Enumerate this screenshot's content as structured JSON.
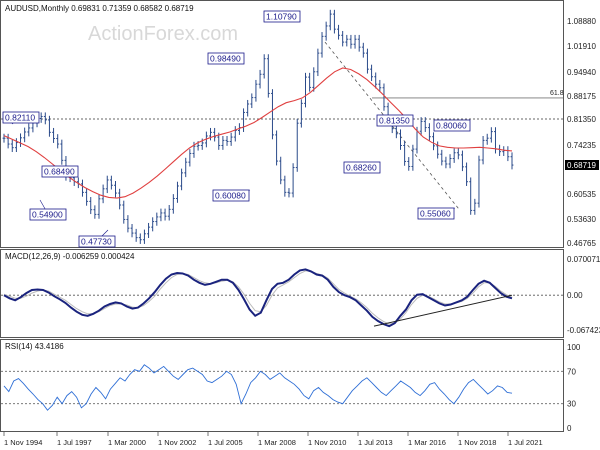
{
  "header": {
    "symbol_line": "AUDUSD,Monthly  0.69831 0.71359 0.68582 0.68719"
  },
  "watermark": "ActionForex.com",
  "colors": {
    "price": "#2a4a8a",
    "sma": "#e04040",
    "macd": "#1a237e",
    "signal": "#bbbbbb",
    "rsi": "#2f6fd6",
    "grid": "#cfcfcf",
    "annotation_bg": "#ffffff",
    "annotation_border": "#1a1a8a"
  },
  "chart_data": [
    {
      "type": "line",
      "title": "AUDUSD,Monthly  0.69831 0.71359 0.68582 0.68719",
      "x_ticks": [
        "1 Nov 1994",
        "1 Jul 1997",
        "1 Mar 2000",
        "1 Nov 2002",
        "1 Jul 2005",
        "1 Mar 2008",
        "1 Nov 2010",
        "1 Jul 2013",
        "1 Mar 2016",
        "1 Nov 2018",
        "1 Jul 2021"
      ],
      "y_ticks": [
        "1.08880",
        "1.01910",
        "0.94940",
        "0.88175",
        "0.81350",
        "0.74235",
        "0.68719",
        "0.60535",
        "0.53630",
        "0.46765"
      ],
      "ylim": [
        0.46765,
        1.0888
      ],
      "current_price": "0.68719",
      "fib_label": "61.8",
      "series": [
        {
          "values": [
            0.761,
            0.745,
            0.735,
            0.749,
            0.762,
            0.778,
            0.789,
            0.803,
            0.815,
            0.821,
            0.811,
            0.777,
            0.76,
            0.745,
            0.7,
            0.655,
            0.651,
            0.64,
            0.634,
            0.61,
            0.585,
            0.562,
            0.549,
            0.592,
            0.62,
            0.645,
            0.63,
            0.608,
            0.575,
            0.535,
            0.51,
            0.496,
            0.483,
            0.477,
            0.494,
            0.513,
            0.529,
            0.542,
            0.553,
            0.544,
            0.563,
            0.593,
            0.628,
            0.665,
            0.695,
            0.719,
            0.739,
            0.741,
            0.748,
            0.767,
            0.777,
            0.764,
            0.741,
            0.755,
            0.752,
            0.764,
            0.782,
            0.79,
            0.833,
            0.858,
            0.877,
            0.915,
            0.943,
            0.985,
            0.889,
            0.77,
            0.698,
            0.645,
            0.61,
            0.608,
            0.68,
            0.802,
            0.86,
            0.935,
            0.906,
            0.95,
            1.0,
            1.046,
            1.075,
            1.108,
            1.066,
            1.049,
            1.03,
            1.038,
            1.024,
            1.038,
            1.016,
            1.0,
            0.957,
            0.936,
            0.915,
            0.905,
            0.85,
            0.813,
            0.787,
            0.773,
            0.741,
            0.697,
            0.683,
            0.731,
            0.78,
            0.807,
            0.79,
            0.765,
            0.74,
            0.717,
            0.698,
            0.69,
            0.705,
            0.721,
            0.715,
            0.682,
            0.64,
            0.56,
            0.58,
            0.701,
            0.755,
            0.761,
            0.779,
            0.731,
            0.724,
            0.727,
            0.71,
            0.687
          ],
          "annotations": [
            "0.82110",
            "0.54900",
            "0.47730",
            "0.68490",
            "0.98490",
            "0.60080",
            "1.10790",
            "0.68260",
            "0.81350",
            "0.80060",
            "0.55060"
          ]
        },
        {
          "name": "",
          "values": [
            0.768,
            0.758,
            0.748,
            0.738,
            0.724,
            0.708,
            0.69,
            0.672,
            0.654,
            0.638,
            0.624,
            0.612,
            0.602,
            0.596,
            0.594,
            0.598,
            0.608,
            0.622,
            0.638,
            0.656,
            0.676,
            0.696,
            0.716,
            0.734,
            0.748,
            0.758,
            0.766,
            0.772,
            0.778,
            0.786,
            0.794,
            0.804,
            0.818,
            0.834,
            0.85,
            0.862,
            0.868,
            0.876,
            0.892,
            0.912,
            0.932,
            0.95,
            0.96,
            0.956,
            0.944,
            0.928,
            0.908,
            0.886,
            0.862,
            0.838,
            0.812,
            0.786,
            0.764,
            0.75,
            0.74,
            0.736,
            0.734,
            0.734,
            0.735,
            0.736,
            0.734,
            0.732,
            0.728,
            0.726
          ]
        }
      ]
    },
    {
      "type": "line",
      "title": "MACD(12,26,9) -0.006259 0.000424",
      "y_ticks": [
        "0.070071",
        "0.00",
        "-0.067423"
      ],
      "ylim": [
        -0.067423,
        0.070071
      ],
      "series": [
        {
          "name": "MACD",
          "values": [
            0.0,
            -0.006,
            -0.01,
            -0.004,
            0.004,
            0.01,
            0.011,
            0.01,
            0.005,
            -0.002,
            -0.008,
            -0.015,
            -0.024,
            -0.032,
            -0.038,
            -0.04,
            -0.036,
            -0.03,
            -0.022,
            -0.017,
            -0.014,
            -0.016,
            -0.022,
            -0.026,
            -0.024,
            -0.016,
            -0.006,
            0.006,
            0.02,
            0.032,
            0.04,
            0.043,
            0.042,
            0.038,
            0.03,
            0.024,
            0.02,
            0.022,
            0.026,
            0.03,
            0.03,
            0.024,
            0.01,
            -0.008,
            -0.028,
            -0.04,
            -0.034,
            -0.01,
            0.012,
            0.022,
            0.024,
            0.03,
            0.04,
            0.048,
            0.05,
            0.046,
            0.04,
            0.038,
            0.03,
            0.016,
            0.006,
            0.0,
            -0.004,
            -0.01,
            -0.02,
            -0.03,
            -0.042,
            -0.05,
            -0.056,
            -0.06,
            -0.054,
            -0.04,
            -0.028,
            -0.01,
            0.001,
            0.002,
            -0.004,
            -0.01,
            -0.016,
            -0.02,
            -0.018,
            -0.014,
            -0.01,
            -0.003,
            0.01,
            0.022,
            0.028,
            0.024,
            0.014,
            0.004,
            -0.003,
            -0.006
          ]
        },
        {
          "name": "Signal",
          "values": [
            0.002,
            -0.002,
            -0.006,
            -0.006,
            -0.002,
            0.004,
            0.008,
            0.01,
            0.008,
            0.002,
            -0.004,
            -0.01,
            -0.018,
            -0.026,
            -0.032,
            -0.036,
            -0.036,
            -0.032,
            -0.026,
            -0.02,
            -0.017,
            -0.017,
            -0.019,
            -0.023,
            -0.024,
            -0.02,
            -0.012,
            -0.002,
            0.012,
            0.024,
            0.034,
            0.04,
            0.042,
            0.04,
            0.034,
            0.028,
            0.024,
            0.022,
            0.024,
            0.027,
            0.029,
            0.026,
            0.016,
            0.002,
            -0.016,
            -0.03,
            -0.032,
            -0.02,
            0.0,
            0.014,
            0.02,
            0.026,
            0.034,
            0.042,
            0.047,
            0.046,
            0.042,
            0.039,
            0.033,
            0.022,
            0.011,
            0.004,
            -0.002,
            -0.007,
            -0.015,
            -0.024,
            -0.035,
            -0.044,
            -0.051,
            -0.056,
            -0.054,
            -0.046,
            -0.034,
            -0.018,
            -0.006,
            0.0,
            -0.002,
            -0.007,
            -0.013,
            -0.017,
            -0.017,
            -0.015,
            -0.012,
            -0.006,
            0.004,
            0.016,
            0.024,
            0.024,
            0.017,
            0.008,
            0.001,
            -0.004
          ]
        }
      ]
    },
    {
      "type": "line",
      "title": "RSI(14) 43.4186",
      "y_ticks": [
        "100",
        "70",
        "30",
        "0"
      ],
      "ylim": [
        0,
        100
      ],
      "series": [
        {
          "name": "RSI",
          "values": [
            52,
            45,
            58,
            61,
            55,
            48,
            42,
            35,
            30,
            22,
            28,
            38,
            30,
            40,
            45,
            38,
            25,
            30,
            42,
            50,
            44,
            36,
            48,
            55,
            62,
            58,
            66,
            72,
            70,
            78,
            74,
            68,
            72,
            76,
            70,
            64,
            60,
            66,
            72,
            74,
            70,
            66,
            58,
            56,
            60,
            64,
            70,
            66,
            54,
            30,
            42,
            56,
            62,
            70,
            66,
            60,
            64,
            68,
            62,
            58,
            54,
            48,
            40,
            36,
            46,
            50,
            44,
            40,
            35,
            32,
            30,
            38,
            46,
            52,
            58,
            62,
            56,
            50,
            44,
            40,
            46,
            52,
            58,
            54,
            50,
            44,
            40,
            46,
            54,
            56,
            48,
            42,
            35,
            30,
            38,
            48,
            56,
            60,
            54,
            48,
            42,
            46,
            52,
            50,
            44,
            43
          ]
        }
      ]
    }
  ]
}
